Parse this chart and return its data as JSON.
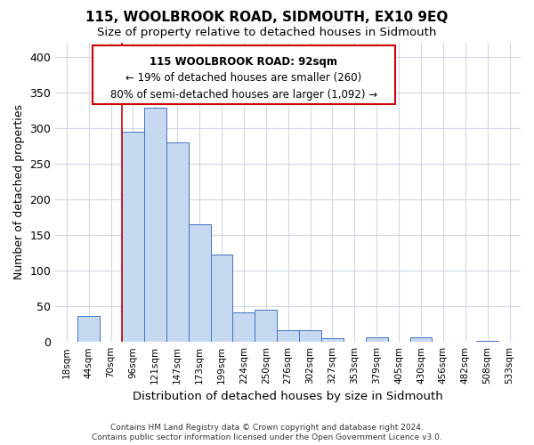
{
  "title": "115, WOOLBROOK ROAD, SIDMOUTH, EX10 9EQ",
  "subtitle": "Size of property relative to detached houses in Sidmouth",
  "xlabel": "Distribution of detached houses by size in Sidmouth",
  "ylabel": "Number of detached properties",
  "bar_labels": [
    "18sqm",
    "44sqm",
    "70sqm",
    "96sqm",
    "121sqm",
    "147sqm",
    "173sqm",
    "199sqm",
    "224sqm",
    "250sqm",
    "276sqm",
    "302sqm",
    "327sqm",
    "353sqm",
    "379sqm",
    "405sqm",
    "430sqm",
    "456sqm",
    "482sqm",
    "508sqm",
    "533sqm"
  ],
  "bar_heights": [
    0,
    37,
    0,
    295,
    328,
    280,
    165,
    123,
    41,
    45,
    17,
    17,
    5,
    0,
    6,
    0,
    6,
    0,
    0,
    2,
    0
  ],
  "bar_color": "#c6d9f0",
  "bar_edge_color": "#4472c4",
  "vline_x": 2.5,
  "vline_color": "#cc0000",
  "ylim": [
    0,
    420
  ],
  "yticks": [
    0,
    50,
    100,
    150,
    200,
    250,
    300,
    350,
    400
  ],
  "annotation_text_line1": "115 WOOLBROOK ROAD: 92sqm",
  "annotation_text_line2": "← 19% of detached houses are smaller (260)",
  "annotation_text_line3": "80% of semi-detached houses are larger (1,092) →",
  "footer_line1": "Contains HM Land Registry data © Crown copyright and database right 2024.",
  "footer_line2": "Contains public sector information licensed under the Open Government Licence v3.0.",
  "background_color": "#ffffff",
  "grid_color": "#d0d8e4"
}
